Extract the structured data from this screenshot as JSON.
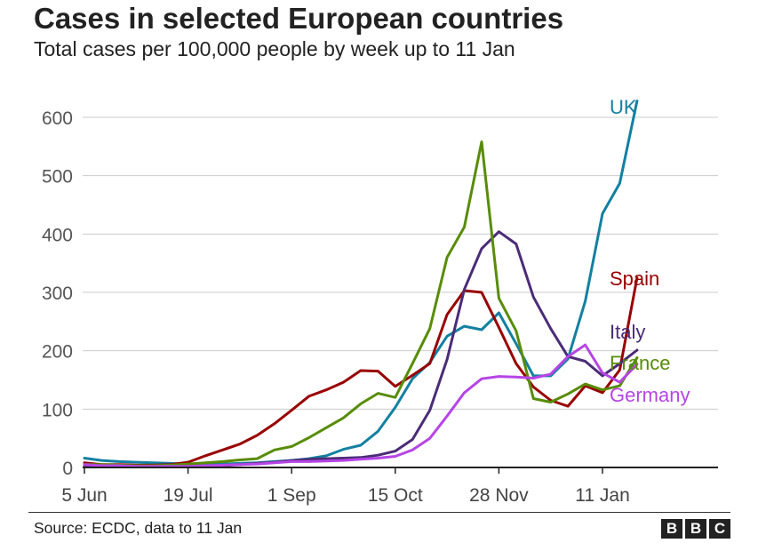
{
  "header": {
    "title": "Cases in selected European countries",
    "subtitle": "Total cases per 100,000 people by week up to 11 Jan"
  },
  "footer": {
    "source": "Source: ECDC, data to 11 Jan",
    "logo_letters": [
      "B",
      "B",
      "C"
    ]
  },
  "chart_data": {
    "type": "line",
    "title": "Cases in selected European countries",
    "subtitle": "Total cases per 100,000 people by week up to 11 Jan",
    "x_ticks": [
      "5 Jun",
      "19 Jul",
      "1 Sep",
      "15 Oct",
      "28 Nov",
      "11 Jan"
    ],
    "x_tick_weeks": [
      0,
      6,
      12,
      18,
      24,
      30
    ],
    "x_weeks_range": [
      0,
      36.5
    ],
    "y_ticks": [
      0,
      100,
      200,
      300,
      400,
      500,
      600
    ],
    "ylim": [
      0,
      640
    ],
    "grid": true,
    "legend": "direct labels at line ends",
    "series": [
      {
        "name": "UK",
        "color": "#1380a1",
        "values": [
          16,
          12,
          10,
          9,
          8,
          7,
          6,
          6,
          6,
          7,
          8,
          10,
          12,
          15,
          20,
          31,
          38,
          62,
          103,
          152,
          180,
          225,
          242,
          236,
          265,
          212,
          157,
          157,
          186,
          285,
          435,
          487,
          628
        ]
      },
      {
        "name": "Spain",
        "color": "#990000",
        "values": [
          8,
          5,
          5,
          4,
          4,
          5,
          9,
          20,
          30,
          40,
          55,
          75,
          98,
          122,
          133,
          146,
          166,
          165,
          139,
          158,
          178,
          262,
          303,
          300,
          240,
          178,
          138,
          115,
          105,
          140,
          128,
          167,
          325
        ]
      },
      {
        "name": "Italy",
        "color": "#4b2c77",
        "values": [
          3,
          2,
          2,
          2,
          1,
          1,
          1,
          2,
          3,
          5,
          7,
          9,
          12,
          14,
          15,
          16,
          17,
          21,
          28,
          48,
          98,
          185,
          305,
          375,
          404,
          383,
          292,
          238,
          190,
          182,
          157,
          178,
          201
        ]
      },
      {
        "name": "France",
        "color": "#588c07",
        "values": [
          5,
          5,
          4,
          3,
          3,
          4,
          6,
          8,
          10,
          13,
          15,
          30,
          36,
          51,
          68,
          85,
          109,
          127,
          120,
          178,
          238,
          360,
          412,
          558,
          290,
          234,
          118,
          112,
          126,
          143,
          133,
          140,
          188
        ]
      },
      {
        "name": "Germany",
        "color": "#b645e6",
        "values": [
          5,
          3,
          3,
          2,
          2,
          2,
          2,
          3,
          4,
          5,
          6,
          8,
          10,
          10,
          11,
          12,
          14,
          16,
          19,
          30,
          50,
          88,
          128,
          152,
          156,
          155,
          153,
          160,
          190,
          210,
          162,
          146,
          177
        ]
      }
    ]
  }
}
